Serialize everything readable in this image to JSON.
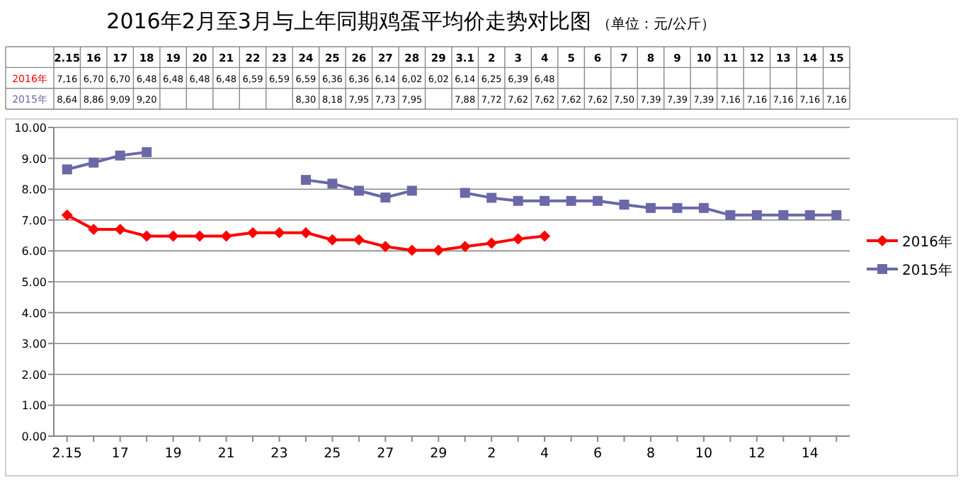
{
  "chart_data": {
    "type": "line",
    "title": "2016年2月至3月与上年同期鸡蛋平均价走势对比图",
    "subtitle": "（单位：元/公斤）",
    "categories": [
      "2.15",
      "16",
      "17",
      "18",
      "19",
      "20",
      "21",
      "22",
      "23",
      "24",
      "25",
      "26",
      "27",
      "28",
      "29",
      "3.1",
      "2",
      "3",
      "4",
      "5",
      "6",
      "7",
      "8",
      "9",
      "10",
      "11",
      "12",
      "13",
      "14",
      "15"
    ],
    "series": [
      {
        "name": "2016年",
        "color": "#ff0000",
        "marker": "diamond",
        "values": [
          7.16,
          6.7,
          6.7,
          6.48,
          6.48,
          6.48,
          6.48,
          6.59,
          6.59,
          6.59,
          6.36,
          6.36,
          6.14,
          6.02,
          6.02,
          6.14,
          6.25,
          6.39,
          6.48,
          null,
          null,
          null,
          null,
          null,
          null,
          null,
          null,
          null,
          null,
          null
        ],
        "value_labels": [
          "7,16",
          "6,70",
          "6,70",
          "6,48",
          "6,48",
          "6,48",
          "6,48",
          "6,59",
          "6,59",
          "6,59",
          "6,36",
          "6,36",
          "6,14",
          "6,02",
          "6,02",
          "6,14",
          "6,25",
          "6,39",
          "6,48",
          null,
          null,
          null,
          null,
          null,
          null,
          null,
          null,
          null,
          null,
          null
        ]
      },
      {
        "name": "2015年",
        "color": "#6b68a8",
        "marker": "square",
        "values": [
          8.64,
          8.86,
          9.09,
          9.2,
          null,
          null,
          null,
          null,
          null,
          8.3,
          8.18,
          7.95,
          7.73,
          7.95,
          null,
          7.88,
          7.72,
          7.62,
          7.62,
          7.62,
          7.62,
          7.5,
          7.39,
          7.39,
          7.39,
          7.16,
          7.16,
          7.16,
          7.16,
          7.16
        ],
        "value_labels": [
          "8,64",
          "8,86",
          "9,09",
          "9,20",
          null,
          null,
          null,
          null,
          null,
          "8,30",
          "8,18",
          "7,95",
          "7,73",
          "7,95",
          null,
          "7,88",
          "7,72",
          "7,62",
          "7,62",
          "7,62",
          "7,62",
          "7,50",
          "7,39",
          "7,39",
          "7,39",
          "7,16",
          "7,16",
          "7,16",
          "7,16",
          "7,16"
        ]
      }
    ],
    "ylim": [
      0,
      10
    ],
    "yticks": [
      {
        "value": 0,
        "label": "0.00"
      },
      {
        "value": 1,
        "label": "1.00"
      },
      {
        "value": 2,
        "label": "2.00"
      },
      {
        "value": 3,
        "label": "3.00"
      },
      {
        "value": 4,
        "label": "4.00"
      },
      {
        "value": 5,
        "label": "5.00"
      },
      {
        "value": 6,
        "label": "6.00"
      },
      {
        "value": 7,
        "label": "7.00"
      },
      {
        "value": 8,
        "label": "8.00"
      },
      {
        "value": 9,
        "label": "9.00"
      },
      {
        "value": 10,
        "label": "10.00"
      }
    ],
    "grid": "y",
    "legend": "right"
  }
}
